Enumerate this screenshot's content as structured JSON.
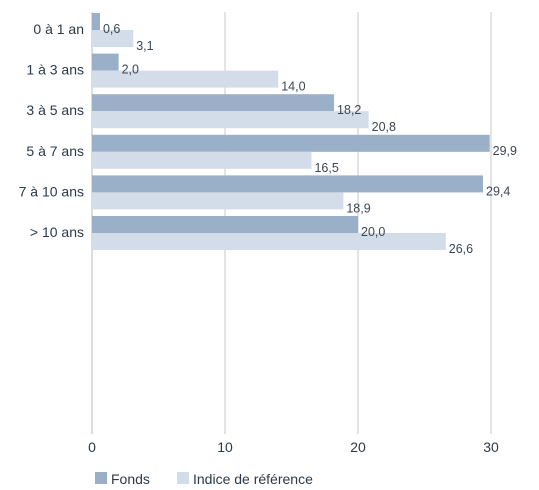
{
  "chart_data": {
    "type": "bar",
    "orientation": "horizontal",
    "categories": [
      "0 à 1 an",
      "1 à 3 ans",
      "3 à 5 ans",
      "5 à 7 ans",
      "7 à 10 ans",
      "> 10 ans"
    ],
    "series": [
      {
        "name": "Fonds",
        "values": [
          0.6,
          2.0,
          18.2,
          29.9,
          29.4,
          20.0
        ],
        "labels": [
          "0,6",
          "2,0",
          "18,2",
          "29,9",
          "29,4",
          "20,0"
        ],
        "color": "#9aafc8"
      },
      {
        "name": "Indice de référence",
        "values": [
          3.1,
          14.0,
          20.8,
          16.5,
          18.9,
          26.6
        ],
        "labels": [
          "3,1",
          "14,0",
          "20,8",
          "16,5",
          "18,9",
          "26,6"
        ],
        "color": "#d3dde9"
      }
    ],
    "xticks": [
      0,
      10,
      20,
      30
    ],
    "xtick_labels": [
      "0",
      "10",
      "20",
      "30"
    ],
    "xlim": [
      0,
      30
    ],
    "grid": true,
    "legend_position": "bottom-left",
    "title": "",
    "xlabel": "",
    "ylabel": ""
  }
}
